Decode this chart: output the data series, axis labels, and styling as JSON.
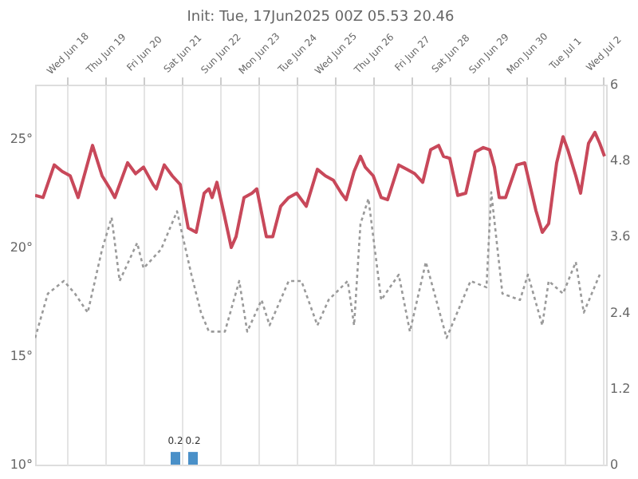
{
  "chart_data": {
    "type": "line",
    "title": "Init: Tue, 17Jun2025 00Z 05.53 20.46",
    "xlim": [
      "2025-06-17T04:00",
      "2025-07-02T02:00"
    ],
    "xticks": [
      {
        "value": "2025-06-18T00:00",
        "label": "Wed Jun 18"
      },
      {
        "value": "2025-06-19T00:00",
        "label": "Thu Jun 19"
      },
      {
        "value": "2025-06-20T00:00",
        "label": "Fri Jun 20"
      },
      {
        "value": "2025-06-21T00:00",
        "label": "Sat Jun 21"
      },
      {
        "value": "2025-06-22T00:00",
        "label": "Sun Jun 22"
      },
      {
        "value": "2025-06-23T00:00",
        "label": "Mon Jun 23"
      },
      {
        "value": "2025-06-24T00:00",
        "label": "Tue Jun 24"
      },
      {
        "value": "2025-06-25T00:00",
        "label": "Wed Jun 25"
      },
      {
        "value": "2025-06-26T00:00",
        "label": "Thu Jun 26"
      },
      {
        "value": "2025-06-27T00:00",
        "label": "Fri Jun 27"
      },
      {
        "value": "2025-06-28T00:00",
        "label": "Sat Jun 28"
      },
      {
        "value": "2025-06-29T00:00",
        "label": "Sun Jun 29"
      },
      {
        "value": "2025-06-30T00:00",
        "label": "Mon Jun 30"
      },
      {
        "value": "2025-07-01T00:00",
        "label": "Tue Jul 1"
      },
      {
        "value": "2025-07-02T00:00",
        "label": "Wed Jul 2"
      }
    ],
    "ylim": [
      10,
      27.5
    ],
    "yticks": [
      {
        "value": 10,
        "label": "10°"
      },
      {
        "value": 15,
        "label": "15°"
      },
      {
        "value": 20,
        "label": "20°"
      },
      {
        "value": 25,
        "label": "25°"
      }
    ],
    "y2lim": [
      0,
      6
    ],
    "y2ticks": [
      0,
      1.2,
      2.4,
      3.6,
      4.8,
      6
    ],
    "grid": "x",
    "series": [
      {
        "color": "#c8485a",
        "line_style": "solid",
        "x": [
          "2025-06-17T04:00",
          "2025-06-17T09:00",
          "2025-06-17T16:00",
          "2025-06-17T21:00",
          "2025-06-18T02:00",
          "2025-06-18T07:00",
          "2025-06-18T10:00",
          "2025-06-18T16:00",
          "2025-06-18T22:00",
          "2025-06-19T03:00",
          "2025-06-19T06:00",
          "2025-06-19T14:00",
          "2025-06-19T19:00",
          "2025-06-20T00:00",
          "2025-06-20T06:00",
          "2025-06-20T08:00",
          "2025-06-20T13:00",
          "2025-06-20T18:00",
          "2025-06-20T23:00",
          "2025-06-21T04:00",
          "2025-06-21T09:00",
          "2025-06-21T14:00",
          "2025-06-21T17:00",
          "2025-06-21T19:00",
          "2025-06-21T22:00",
          "2025-06-22T02:00",
          "2025-06-22T07:00",
          "2025-06-22T10:00",
          "2025-06-22T15:00",
          "2025-06-22T20:00",
          "2025-06-22T23:00",
          "2025-06-23T05:00",
          "2025-06-23T09:00",
          "2025-06-23T14:00",
          "2025-06-23T19:00",
          "2025-06-24T00:00",
          "2025-06-24T06:00",
          "2025-06-24T13:00",
          "2025-06-24T18:00",
          "2025-06-24T23:00",
          "2025-06-25T04:00",
          "2025-06-25T07:00",
          "2025-06-25T12:00",
          "2025-06-25T16:00",
          "2025-06-25T19:00",
          "2025-06-26T00:00",
          "2025-06-26T05:00",
          "2025-06-26T09:00",
          "2025-06-26T16:00",
          "2025-06-26T21:00",
          "2025-06-27T02:00",
          "2025-06-27T07:00",
          "2025-06-27T12:00",
          "2025-06-27T17:00",
          "2025-06-27T20:00",
          "2025-06-28T00:00",
          "2025-06-28T05:00",
          "2025-06-28T10:00",
          "2025-06-28T16:00",
          "2025-06-28T21:00",
          "2025-06-29T01:00",
          "2025-06-29T04:00",
          "2025-06-29T07:00",
          "2025-06-29T11:00",
          "2025-06-29T18:00",
          "2025-06-29T23:00",
          "2025-06-30T06:00",
          "2025-06-30T10:00",
          "2025-06-30T14:00",
          "2025-06-30T19:00",
          "2025-06-30T23:00",
          "2025-07-01T02:00",
          "2025-07-01T07:00",
          "2025-07-01T10:00",
          "2025-07-01T15:00",
          "2025-07-01T19:00",
          "2025-07-01T22:00",
          "2025-07-02T01:00"
        ],
        "values": [
          22.4,
          22.3,
          23.8,
          23.5,
          23.3,
          22.3,
          23.1,
          24.7,
          23.3,
          22.7,
          22.3,
          23.9,
          23.4,
          23.7,
          22.9,
          22.7,
          23.8,
          23.3,
          22.9,
          20.9,
          20.7,
          22.5,
          22.7,
          22.3,
          23.0,
          21.7,
          20.0,
          20.5,
          22.3,
          22.5,
          22.7,
          20.5,
          20.5,
          21.9,
          22.3,
          22.5,
          21.9,
          23.6,
          23.3,
          23.1,
          22.5,
          22.2,
          23.5,
          24.2,
          23.7,
          23.3,
          22.3,
          22.2,
          23.8,
          23.6,
          23.4,
          23.0,
          24.5,
          24.7,
          24.2,
          24.1,
          22.4,
          22.5,
          24.4,
          24.6,
          24.5,
          23.7,
          22.3,
          22.3,
          23.8,
          23.9,
          21.7,
          20.7,
          21.1,
          23.9,
          25.1,
          24.5,
          23.3,
          22.5,
          24.8,
          25.3,
          24.8,
          24.2
        ]
      },
      {
        "axis": "y2",
        "color": "#9a9a9a",
        "line_style": "dotted",
        "x": [
          "2025-06-17T04:00",
          "2025-06-17T12:00",
          "2025-06-17T22:00",
          "2025-06-18T05:00",
          "2025-06-18T13:00",
          "2025-06-18T22:00",
          "2025-06-19T04:00",
          "2025-06-19T09:00",
          "2025-06-19T20:00",
          "2025-06-20T00:00",
          "2025-06-20T11:00",
          "2025-06-20T21:00",
          "2025-06-21T06:00",
          "2025-06-21T12:00",
          "2025-06-21T17:00",
          "2025-06-22T03:00",
          "2025-06-22T12:00",
          "2025-06-22T17:00",
          "2025-06-23T02:00",
          "2025-06-23T07:00",
          "2025-06-23T19:00",
          "2025-06-24T03:00",
          "2025-06-24T13:00",
          "2025-06-24T20:00",
          "2025-06-25T08:00",
          "2025-06-25T12:00",
          "2025-06-25T16:00",
          "2025-06-25T21:00",
          "2025-06-26T05:00",
          "2025-06-26T16:00",
          "2025-06-26T23:00",
          "2025-06-27T09:00",
          "2025-06-27T22:00",
          "2025-06-28T13:00",
          "2025-06-28T23:00",
          "2025-06-29T02:00",
          "2025-06-29T09:00",
          "2025-06-29T20:00",
          "2025-06-30T01:00",
          "2025-06-30T10:00",
          "2025-06-30T14:00",
          "2025-06-30T23:00",
          "2025-07-01T07:00",
          "2025-07-01T12:00",
          "2025-07-01T22:00"
        ],
        "values": [
          2.0,
          2.7,
          2.9,
          2.7,
          2.4,
          3.4,
          3.9,
          2.9,
          3.5,
          3.1,
          3.4,
          4.0,
          3.0,
          2.4,
          2.1,
          2.1,
          2.9,
          2.1,
          2.6,
          2.2,
          2.9,
          2.9,
          2.2,
          2.6,
          2.9,
          2.2,
          3.8,
          4.2,
          2.6,
          3.0,
          2.1,
          3.2,
          2.0,
          2.9,
          2.8,
          4.3,
          2.7,
          2.6,
          3.0,
          2.2,
          2.9,
          2.7,
          3.2,
          2.4,
          3.0
        ]
      },
      {
        "type": "bar",
        "axis": "y2",
        "color": "#4a90c8",
        "x": [
          "2025-06-20T20:00",
          "2025-06-21T07:00"
        ],
        "values": [
          0.2,
          0.2
        ],
        "value_labels": [
          "0.2",
          "0.2"
        ]
      }
    ]
  }
}
